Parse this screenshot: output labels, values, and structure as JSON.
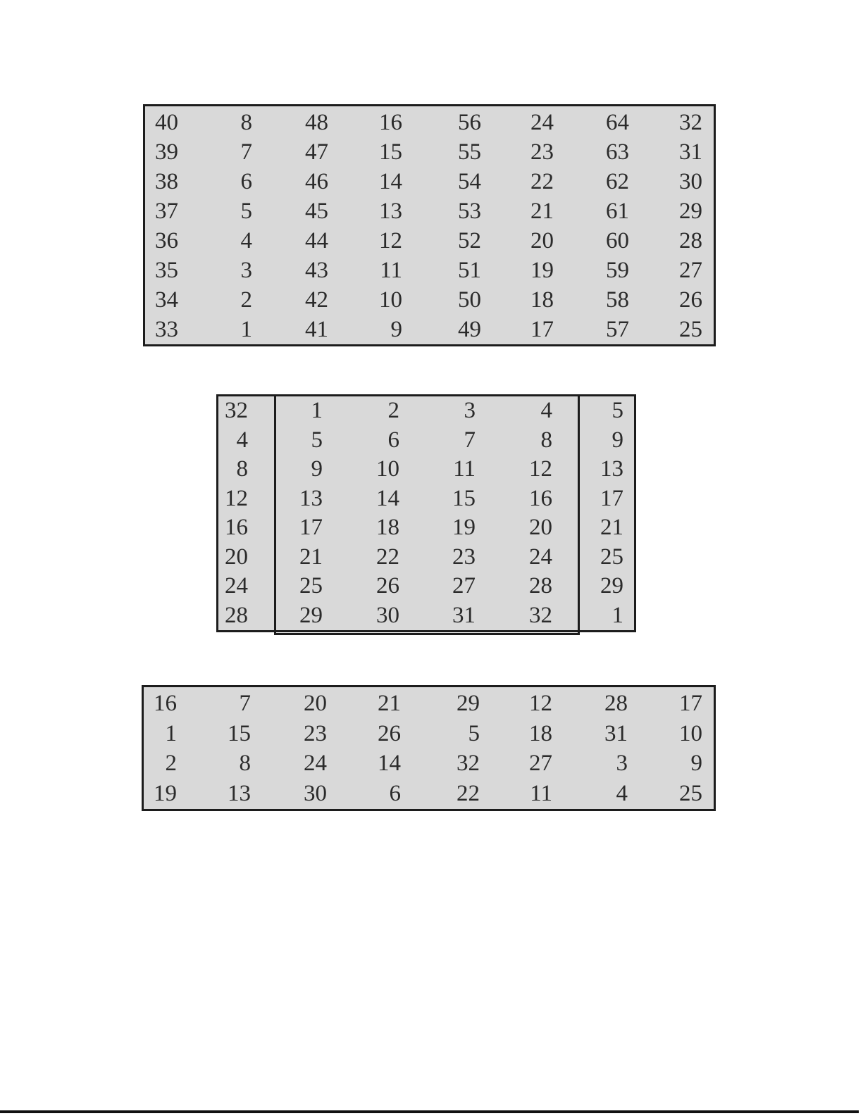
{
  "colors": {
    "page_bg": "#ffffff",
    "table_bg": "#d9d9d9",
    "border": "#1c1c1c",
    "text": "#2b2b2b",
    "rule": "#111111"
  },
  "table1": {
    "rows": [
      [
        "40",
        "8",
        "48",
        "16",
        "56",
        "24",
        "64",
        "32"
      ],
      [
        "39",
        "7",
        "47",
        "15",
        "55",
        "23",
        "63",
        "31"
      ],
      [
        "38",
        "6",
        "46",
        "14",
        "54",
        "22",
        "62",
        "30"
      ],
      [
        "37",
        "5",
        "45",
        "13",
        "53",
        "21",
        "61",
        "29"
      ],
      [
        "36",
        "4",
        "44",
        "12",
        "52",
        "20",
        "60",
        "28"
      ],
      [
        "35",
        "3",
        "43",
        "11",
        "51",
        "19",
        "59",
        "27"
      ],
      [
        "34",
        "2",
        "42",
        "10",
        "50",
        "18",
        "58",
        "26"
      ],
      [
        "33",
        "1",
        "41",
        "9",
        "49",
        "17",
        "57",
        "25"
      ]
    ]
  },
  "table2": {
    "rows": [
      [
        "32",
        "1",
        "2",
        "3",
        "4",
        "5"
      ],
      [
        "4",
        "5",
        "6",
        "7",
        "8",
        "9"
      ],
      [
        "8",
        "9",
        "10",
        "11",
        "12",
        "13"
      ],
      [
        "12",
        "13",
        "14",
        "15",
        "16",
        "17"
      ],
      [
        "16",
        "17",
        "18",
        "19",
        "20",
        "21"
      ],
      [
        "20",
        "21",
        "22",
        "23",
        "24",
        "25"
      ],
      [
        "24",
        "25",
        "26",
        "27",
        "28",
        "29"
      ],
      [
        "28",
        "29",
        "30",
        "31",
        "32",
        "1"
      ]
    ]
  },
  "table3": {
    "rows": [
      [
        "16",
        "7",
        "20",
        "21",
        "29",
        "12",
        "28",
        "17"
      ],
      [
        "1",
        "15",
        "23",
        "26",
        "5",
        "18",
        "31",
        "10"
      ],
      [
        "2",
        "8",
        "24",
        "14",
        "32",
        "27",
        "3",
        "9"
      ],
      [
        "19",
        "13",
        "30",
        "6",
        "22",
        "11",
        "4",
        "25"
      ]
    ]
  }
}
